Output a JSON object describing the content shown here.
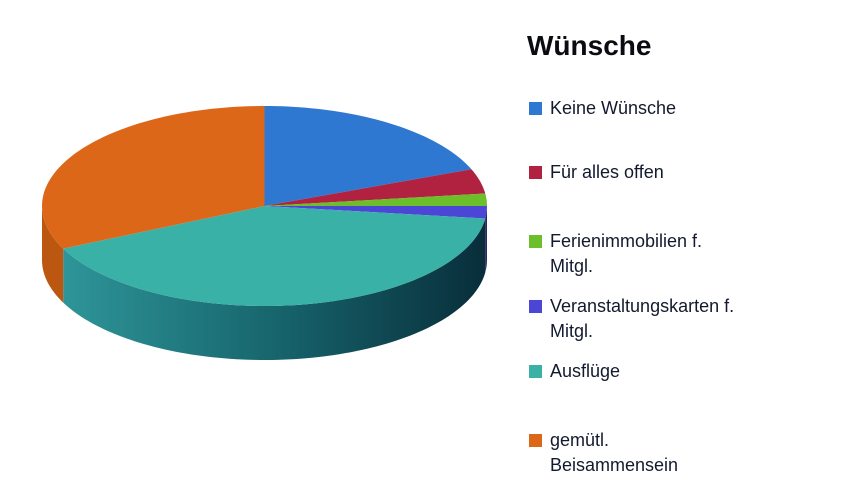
{
  "title": "Wünsche",
  "legend": {
    "items": [
      {
        "label": "Keine Wünsche",
        "color": "#2E78D2"
      },
      {
        "label": "Für alles offen",
        "color": "#B02240"
      },
      {
        "label": "Ferienimmobilien f. Mitgl.",
        "color": "#6CBE2A"
      },
      {
        "label": "Veranstaltungskarten f. Mitgl.",
        "color": "#4C46D6"
      },
      {
        "label": "Ausflüge",
        "color": "#3AB1A7"
      },
      {
        "label": "gemütl. Beisammensein",
        "color": "#DD6719"
      }
    ]
  },
  "chart_data": {
    "type": "pie",
    "style": "3d-pie",
    "title": "Wünsche",
    "categories": [
      "Keine Wünsche",
      "Für alles offen",
      "Ferienimmobilien f. Mitgl.",
      "Veranstaltungskarten f. Mitgl.",
      "Ausflüge",
      "gemütl. Beisammensein"
    ],
    "values": [
      19,
      4,
      2,
      2,
      41,
      32
    ],
    "unit": "percent (estimated from slice angles; no data labels shown in chart)",
    "colors": [
      "#2E78D2",
      "#B02240",
      "#6CBE2A",
      "#4C46D6",
      "#3AB1A7",
      "#DD6719"
    ],
    "wall_colors": [
      "",
      "",
      "",
      "#272566",
      "gradient",
      "#BC5712"
    ],
    "wall_gradient_stops": [
      "#2E9598",
      "#17656D",
      "#082E3A"
    ],
    "start_angle_deg": 90,
    "direction": "clockwise",
    "legend_position": "right",
    "data_labels": false,
    "background": "#ffffff"
  }
}
